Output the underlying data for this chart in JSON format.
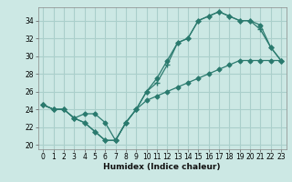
{
  "title": "",
  "xlabel": "Humidex (Indice chaleur)",
  "bg_color": "#cce8e4",
  "grid_color": "#aacfcb",
  "line_color": "#2a7a6e",
  "xlim": [
    -0.5,
    23.5
  ],
  "ylim": [
    19.5,
    35.5
  ],
  "xticks": [
    0,
    1,
    2,
    3,
    4,
    5,
    6,
    7,
    8,
    9,
    10,
    11,
    12,
    13,
    14,
    15,
    16,
    17,
    18,
    19,
    20,
    21,
    22,
    23
  ],
  "yticks": [
    20,
    22,
    24,
    26,
    28,
    30,
    32,
    34
  ],
  "line1_x": [
    0,
    1,
    2,
    3,
    4,
    5,
    6,
    7,
    8,
    9,
    10,
    11,
    12,
    13,
    14,
    15,
    16,
    17,
    18,
    19,
    20,
    21,
    22,
    23
  ],
  "line1_y": [
    24.5,
    24.0,
    24.0,
    23.0,
    22.5,
    21.5,
    20.5,
    20.5,
    22.5,
    24.0,
    26.0,
    27.5,
    29.5,
    31.5,
    32.0,
    34.0,
    34.5,
    35.0,
    34.5,
    34.0,
    34.0,
    33.5,
    31.0,
    29.5
  ],
  "line2_x": [
    0,
    1,
    2,
    3,
    4,
    5,
    6,
    7,
    8,
    9,
    10,
    11,
    12,
    13,
    14,
    15,
    16,
    17,
    18,
    19,
    20,
    21,
    22,
    23
  ],
  "line2_y": [
    24.5,
    24.0,
    24.0,
    23.0,
    22.5,
    21.5,
    20.5,
    20.5,
    22.5,
    24.0,
    26.0,
    27.0,
    29.0,
    31.5,
    32.0,
    34.0,
    34.5,
    35.0,
    34.5,
    34.0,
    34.0,
    33.0,
    31.0,
    29.5
  ],
  "line3_x": [
    0,
    1,
    2,
    3,
    4,
    5,
    6,
    7,
    8,
    9,
    10,
    11,
    12,
    13,
    14,
    15,
    16,
    17,
    18,
    19,
    20,
    21,
    22,
    23
  ],
  "line3_y": [
    24.5,
    24.0,
    24.0,
    23.0,
    23.5,
    23.5,
    22.5,
    20.5,
    22.5,
    24.0,
    25.0,
    25.5,
    26.0,
    26.5,
    27.0,
    27.5,
    28.0,
    28.5,
    29.0,
    29.5,
    29.5,
    29.5,
    29.5,
    29.5
  ]
}
